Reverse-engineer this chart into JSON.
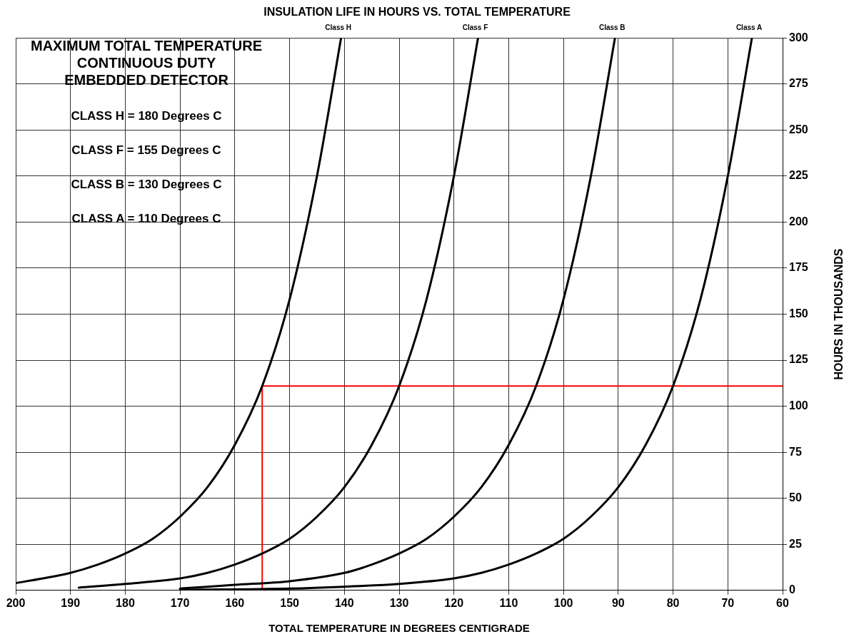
{
  "chart_data": {
    "type": "line",
    "title": "INSULATION LIFE IN HOURS VS. TOTAL TEMPERATURE",
    "xlabel": "TOTAL TEMPERATURE IN DEGREES CENTIGRADE",
    "ylabel": "HOURS IN THOUSANDS",
    "xlim": [
      200,
      60
    ],
    "xticks": [
      200,
      190,
      180,
      170,
      160,
      150,
      140,
      130,
      120,
      110,
      100,
      90,
      80,
      70,
      60
    ],
    "ylim": [
      0,
      300
    ],
    "yticks": [
      0,
      25,
      50,
      75,
      100,
      125,
      150,
      175,
      200,
      225,
      250,
      275,
      300
    ],
    "grid": true,
    "legend": false,
    "marker": "none",
    "line_style": "solid",
    "annotations": [
      "MAXIMUM TOTAL TEMPERATURE",
      "CONTINUOUS DUTY",
      "EMBEDDED DETECTOR",
      "CLASS H = 180 Degrees C",
      "CLASS F = 155 Degrees C",
      "CLASS B = 130 Degrees C",
      "CLASS A = 110 Degrees C"
    ],
    "series": [
      {
        "name": "Class H",
        "color": "#000000",
        "x": [
          200,
          195,
          190,
          185,
          180,
          175,
          170,
          165,
          160,
          155,
          150,
          145,
          140.6
        ],
        "values": [
          4,
          6.5,
          9.5,
          14,
          20,
          28,
          40,
          56,
          79,
          111,
          158,
          225,
          300
        ]
      },
      {
        "name": "Class F",
        "color": "#000000",
        "x": [
          188.5,
          180,
          170,
          165,
          160,
          155,
          150,
          145,
          140,
          135,
          130,
          125,
          120,
          115.6
        ],
        "values": [
          1.5,
          3.5,
          6.5,
          9.5,
          14,
          20,
          28,
          40,
          56,
          79,
          111,
          158,
          225,
          300
        ]
      },
      {
        "name": "Class B",
        "color": "#000000",
        "x": [
          170,
          160,
          150,
          140,
          135,
          130,
          125,
          120,
          115,
          110,
          105,
          100,
          95,
          90.6
        ],
        "values": [
          1,
          3,
          5,
          9.5,
          14,
          20,
          28,
          40,
          56,
          79,
          111,
          158,
          225,
          300
        ]
      },
      {
        "name": "Class A",
        "color": "#000000",
        "x": [
          170,
          150,
          140,
          130,
          120,
          115,
          110,
          105,
          100,
          95,
          90,
          85,
          80,
          75,
          70,
          65.6
        ],
        "values": [
          0.3,
          1,
          2,
          3.5,
          6.5,
          9.5,
          14,
          20,
          28,
          40,
          56,
          79,
          111,
          158,
          225,
          300
        ]
      },
      {
        "type": "line",
        "color": "#ff0000",
        "x": [
          155,
          155,
          60
        ],
        "values": [
          0,
          111,
          111
        ]
      }
    ]
  }
}
